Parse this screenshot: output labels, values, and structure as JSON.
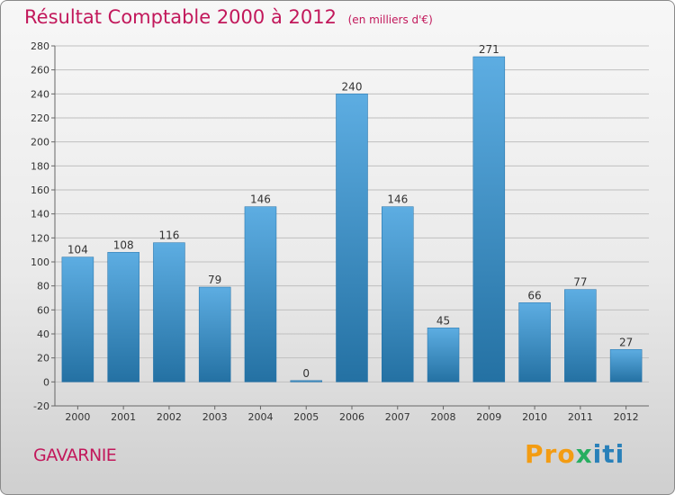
{
  "title": {
    "main": "Résultat Comptable 2000 à 2012",
    "subtitle": "(en milliers d'€)"
  },
  "place_name": "GAVARNIE",
  "logo": {
    "part1": "Pro",
    "part2": "x",
    "part3": "iti"
  },
  "colors": {
    "title": "#c2185b",
    "bar_light": "#5dade2",
    "bar_dark": "#2471a3",
    "grid": "#bfbfbf",
    "axis": "#666666"
  },
  "chart_data": {
    "type": "bar",
    "title": "Résultat Comptable 2000 à 2012",
    "xlabel": "",
    "ylabel": "",
    "categories": [
      "2000",
      "2001",
      "2002",
      "2003",
      "2004",
      "2005",
      "2006",
      "2007",
      "2008",
      "2009",
      "2010",
      "2011",
      "2012"
    ],
    "values": [
      104,
      108,
      116,
      79,
      146,
      0,
      240,
      146,
      45,
      271,
      66,
      77,
      27
    ],
    "data_labels": [
      "104",
      "108",
      "116",
      "79",
      "146",
      "0",
      "240",
      "146",
      "45",
      "271",
      "66",
      "77",
      "27"
    ],
    "ylim": [
      -20,
      280
    ],
    "yticks": [
      -20,
      0,
      20,
      40,
      60,
      80,
      100,
      120,
      140,
      160,
      180,
      200,
      220,
      240,
      260,
      280
    ],
    "grid": true
  }
}
